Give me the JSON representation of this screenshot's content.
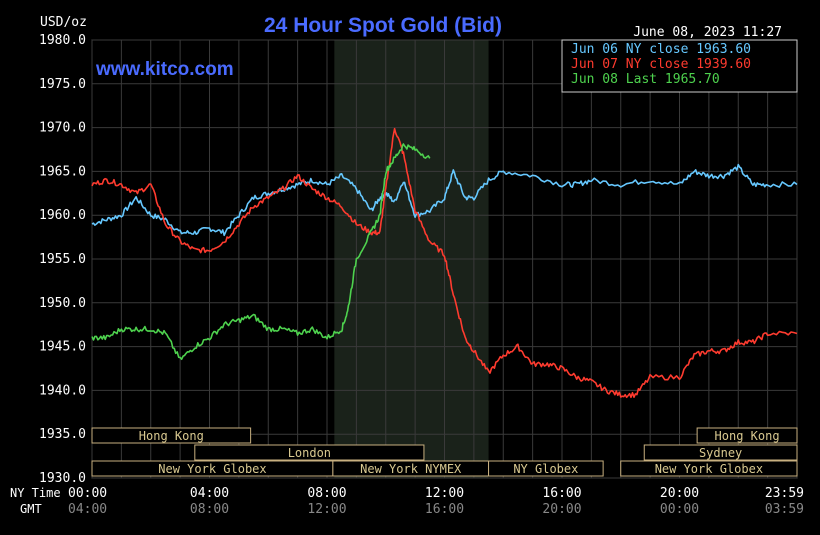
{
  "chart_data": {
    "type": "line",
    "title": "24 Hour Spot Gold (Bid)",
    "ylabel": "USD/oz",
    "watermark": "www.kitco.com",
    "timestamp": "June 08, 2023 11:27",
    "ylim": [
      1930,
      1980
    ],
    "y_ticks": [
      "1980.0",
      "1975.0",
      "1970.0",
      "1965.0",
      "1960.0",
      "1955.0",
      "1950.0",
      "1945.0",
      "1940.0",
      "1935.0",
      "1930.0"
    ],
    "y_tick_values": [
      1980,
      1975,
      1970,
      1965,
      1960,
      1955,
      1950,
      1945,
      1940,
      1935,
      1930
    ],
    "xlim": [
      0,
      24
    ],
    "x_row_labels": {
      "ny": "NY Time",
      "gmt": "GMT"
    },
    "x_ticks_ny": [
      "00:00",
      "04:00",
      "08:00",
      "12:00",
      "16:00",
      "20:00",
      "23:59"
    ],
    "x_ticks_gmt": [
      "04:00",
      "08:00",
      "12:00",
      "16:00",
      "20:00",
      "00:00",
      "03:59"
    ],
    "x_tick_hours": [
      0,
      4,
      8,
      12,
      16,
      20,
      24
    ],
    "highlight_hours": [
      8.25,
      13.5
    ],
    "grid": true,
    "legend_position": "top-right",
    "series": [
      {
        "name": "Jun 06 NY close 1963.60",
        "color": "#66c8ff",
        "x": [
          0,
          0.5,
          1,
          1.5,
          2,
          2.5,
          3,
          3.5,
          4,
          4.5,
          5,
          5.5,
          6,
          6.5,
          7,
          7.5,
          8,
          8.5,
          9,
          9.5,
          9.8,
          10,
          10.3,
          10.6,
          11,
          11.5,
          12,
          12.3,
          12.7,
          13,
          13.5,
          14,
          15,
          16,
          16.5,
          17,
          18,
          19,
          20,
          20.5,
          21,
          21.5,
          22,
          22.5,
          23,
          24
        ],
        "y": [
          1959,
          1959.5,
          1960,
          1962,
          1960,
          1959.5,
          1958,
          1958,
          1958.5,
          1958,
          1960,
          1962,
          1962.5,
          1963,
          1963.5,
          1964,
          1963.5,
          1964.5,
          1963,
          1960.5,
          1962,
          1962.5,
          1961.5,
          1964,
          1960,
          1960.5,
          1962,
          1965,
          1962,
          1962,
          1964,
          1965,
          1964.5,
          1963.5,
          1963.5,
          1964,
          1963.5,
          1964,
          1963.5,
          1965,
          1964.5,
          1964.5,
          1965.5,
          1963.5,
          1963.5,
          1963.5
        ]
      },
      {
        "name": "Jun 07 NY close 1939.60",
        "color": "#ff3b2f",
        "x": [
          0,
          0.5,
          1,
          1.5,
          2,
          2.5,
          3,
          3.5,
          4,
          4.5,
          5,
          5.5,
          6,
          6.5,
          7,
          7.5,
          8,
          8.5,
          9,
          9.5,
          9.8,
          10,
          10.3,
          10.6,
          11,
          11.5,
          12,
          12.3,
          12.7,
          13,
          13.5,
          14,
          14.5,
          15,
          15.5,
          16,
          16.5,
          17,
          17.5,
          18,
          18.5,
          19,
          20,
          20.5,
          21,
          21.5,
          22,
          22.5,
          23,
          24
        ],
        "y": [
          1963.5,
          1964,
          1963.5,
          1962.5,
          1963.5,
          1959,
          1957,
          1956,
          1956,
          1957,
          1959,
          1961,
          1962,
          1963,
          1964.5,
          1963,
          1962,
          1961,
          1959,
          1958,
          1958,
          1963,
          1970,
          1967,
          1960.5,
          1957,
          1955.5,
          1951,
          1946,
          1944.5,
          1942,
          1944,
          1945,
          1943,
          1943,
          1942.5,
          1941.5,
          1941,
          1940,
          1939.5,
          1939.5,
          1941.5,
          1941.5,
          1944,
          1944.5,
          1944.5,
          1945.5,
          1945.5,
          1946.5,
          1946.5
        ]
      },
      {
        "name": "Jun 08 Last 1965.70",
        "color": "#4ed24e",
        "x": [
          0,
          0.5,
          1,
          1.5,
          2,
          2.5,
          3,
          3.5,
          4,
          4.5,
          5,
          5.5,
          6,
          6.5,
          7,
          7.5,
          8,
          8.5,
          8.7,
          9,
          9.5,
          9.8,
          10,
          10.3,
          10.6,
          11,
          11.5
        ],
        "y": [
          1946,
          1946,
          1947,
          1947,
          1947,
          1946.5,
          1943.5,
          1945,
          1946,
          1947.5,
          1948,
          1948.5,
          1947,
          1947,
          1946.5,
          1947,
          1946,
          1947,
          1949,
          1955,
          1958,
          1960,
          1965,
          1966.5,
          1968,
          1967.5,
          1966.5
        ]
      }
    ],
    "sessions": [
      {
        "label": "Hong Kong",
        "x0": 0,
        "x1": 5.4,
        "row": 0
      },
      {
        "label": "London",
        "x0": 3.5,
        "x1": 11.3,
        "row": 1
      },
      {
        "label": "Hong Kong",
        "x0": 20.6,
        "x1": 24,
        "row": 0
      },
      {
        "label": "Sydney",
        "x0": 18.8,
        "x1": 24,
        "row": 1
      },
      {
        "label": "New York Globex",
        "x0": 0,
        "x1": 8.2,
        "row": 2
      },
      {
        "label": "New York NYMEX",
        "x0": 8.2,
        "x1": 13.5,
        "row": 2
      },
      {
        "label": "NY Globex",
        "x0": 13.5,
        "x1": 17.4,
        "row": 2
      },
      {
        "label": "New York Globex",
        "x0": 18.0,
        "x1": 24,
        "row": 2
      }
    ]
  }
}
